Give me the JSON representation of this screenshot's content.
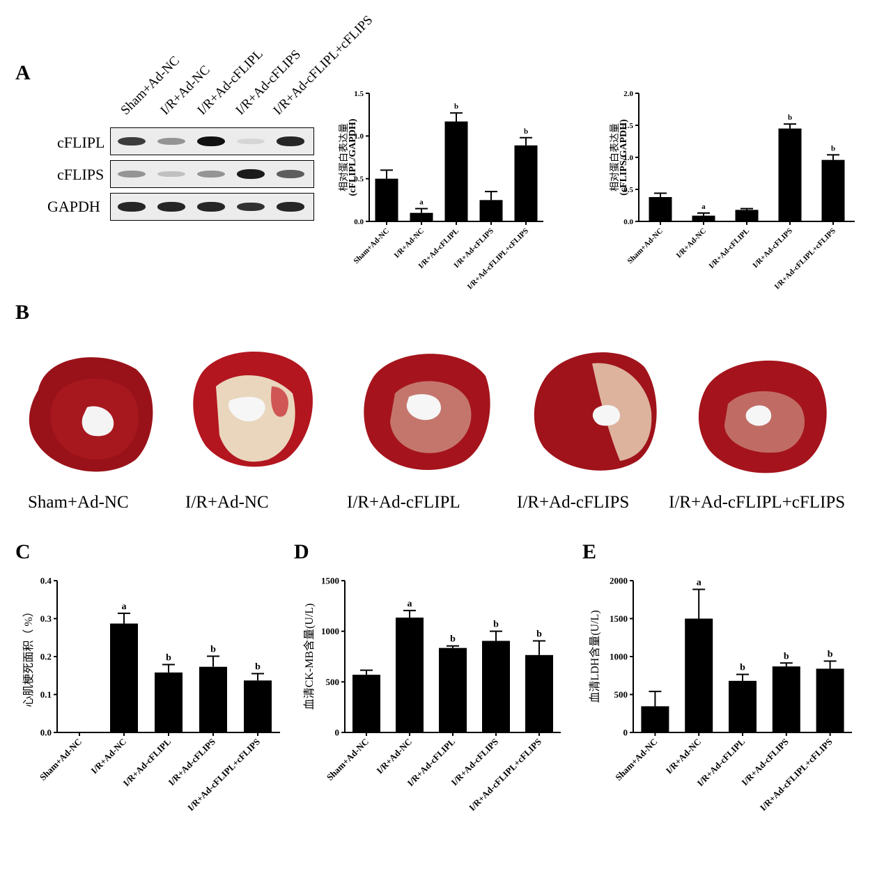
{
  "panels": {
    "A": "A",
    "B": "B",
    "C": "C",
    "D": "D",
    "E": "E"
  },
  "groups": [
    "Sham+Ad-NC",
    "I/R+Ad-NC",
    "I/R+Ad-cFLIPL",
    "I/R+Ad-cFLIPS",
    "I/R+Ad-cFLIPL+cFLIPS"
  ],
  "western_blot": {
    "proteins": [
      "cFLIPL",
      "cFLIPS",
      "GAPDH"
    ],
    "band_intensity": {
      "cFLIPL": [
        0.75,
        0.35,
        0.95,
        0.05,
        0.85
      ],
      "cFLIPS": [
        0.35,
        0.15,
        0.35,
        0.9,
        0.6
      ],
      "GAPDH": [
        0.85,
        0.85,
        0.85,
        0.8,
        0.85
      ]
    }
  },
  "heart_labels": [
    "Sham+Ad-NC",
    "I/R+Ad-NC",
    "I/R+Ad-cFLIPL",
    "I/R+Ad-cFLIPS",
    "I/R+Ad-cFLIPL+cFLIPS"
  ],
  "colors": {
    "bar": "#000000",
    "tissue": "#a0131b",
    "infarct": "#e6cfb0"
  },
  "chart_data": [
    {
      "id": "A1",
      "type": "bar",
      "categories": [
        "Sham+Ad-NC",
        "I/R+Ad-NC",
        "I/R+Ad-cFLIPL",
        "I/R+Ad-cFLIPS",
        "I/R+Ad-cFLIPL+cFLIPS"
      ],
      "values": [
        0.5,
        0.1,
        1.17,
        0.25,
        0.89
      ],
      "errors": [
        0.1,
        0.05,
        0.1,
        0.1,
        0.09
      ],
      "annotations": [
        "",
        "a",
        "b",
        "",
        "b"
      ],
      "ylabel": [
        "相对蛋白表达量",
        "(cFLIPL/GAPDH)"
      ],
      "ylim": [
        0,
        1.5
      ],
      "yticks": [
        "0.0",
        "0.5",
        "1.0",
        "1.5"
      ],
      "tick_values": [
        0,
        0.5,
        1.0,
        1.5
      ]
    },
    {
      "id": "A2",
      "type": "bar",
      "categories": [
        "Sham+Ad-NC",
        "I/R+Ad-NC",
        "I/R+Ad-cFLIPL",
        "I/R+Ad-cFLIPS",
        "I/R+Ad-cFLIPL+cFLIPS"
      ],
      "values": [
        0.38,
        0.09,
        0.18,
        1.45,
        0.96
      ],
      "errors": [
        0.06,
        0.04,
        0.02,
        0.07,
        0.08
      ],
      "annotations": [
        "",
        "a",
        "",
        "b",
        "b"
      ],
      "ylabel": [
        "相对蛋白表达量",
        "(cFLIPS/GAPDH)"
      ],
      "ylim": [
        0,
        2.0
      ],
      "yticks": [
        "0.0",
        "0.5",
        "1.0",
        "1.5",
        "2.0"
      ],
      "tick_values": [
        0,
        0.5,
        1.0,
        1.5,
        2.0
      ]
    },
    {
      "id": "C",
      "type": "bar",
      "categories": [
        "Sham+Ad-NC",
        "I/R+Ad-NC",
        "I/R+Ad-cFLIPL",
        "I/R+Ad-cFLIPS",
        "I/R+Ad-cFLIPL+cFLIPS"
      ],
      "values": [
        0,
        0.287,
        0.158,
        0.173,
        0.137
      ],
      "errors": [
        0,
        0.027,
        0.021,
        0.028,
        0.018
      ],
      "annotations": [
        "",
        "a",
        "b",
        "b",
        "b"
      ],
      "ylabel": [
        "心肌梗死面积（ %）"
      ],
      "ylim": [
        0,
        0.4
      ],
      "yticks": [
        "0.0",
        "0.1",
        "0.2",
        "0.3",
        "0.4"
      ],
      "tick_values": [
        0,
        0.1,
        0.2,
        0.3,
        0.4
      ]
    },
    {
      "id": "D",
      "type": "bar",
      "categories": [
        "Sham+Ad-NC",
        "I/R+Ad-NC",
        "I/R+Ad-cFLIPL",
        "I/R+Ad-cFLIPS",
        "I/R+Ad-cFLIPL+cFLIPS"
      ],
      "values": [
        570,
        1135,
        835,
        905,
        765
      ],
      "errors": [
        45,
        70,
        20,
        95,
        140
      ],
      "annotations": [
        "",
        "a",
        "b",
        "b",
        "b"
      ],
      "ylabel": [
        "血清CK-MB含量(U/L)"
      ],
      "ylim": [
        0,
        1500
      ],
      "yticks": [
        "0",
        "500",
        "1000",
        "1500"
      ],
      "tick_values": [
        0,
        500,
        1000,
        1500
      ]
    },
    {
      "id": "E",
      "type": "bar",
      "categories": [
        "Sham+Ad-NC",
        "I/R+Ad-NC",
        "I/R+Ad-cFLIPL",
        "I/R+Ad-cFLIPS",
        "I/R+Ad-cFLIPL+cFLIPS"
      ],
      "values": [
        345,
        1500,
        680,
        870,
        840
      ],
      "errors": [
        195,
        385,
        85,
        45,
        100
      ],
      "annotations": [
        "",
        "a",
        "b",
        "b",
        "b"
      ],
      "ylabel": [
        "血清LDH含量(U/L)"
      ],
      "ylim": [
        0,
        2000
      ],
      "yticks": [
        "0",
        "500",
        "1000",
        "1500",
        "2000"
      ],
      "tick_values": [
        0,
        500,
        1000,
        1500,
        2000
      ]
    }
  ]
}
